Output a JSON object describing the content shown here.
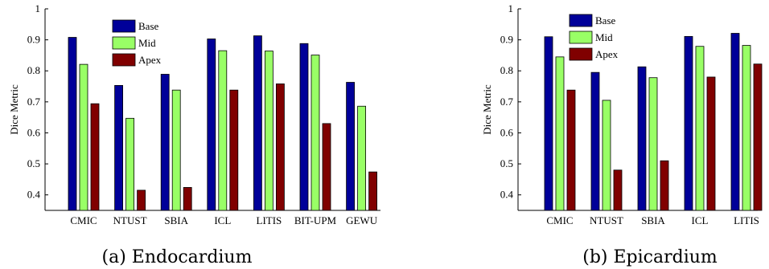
{
  "chart_data": [
    {
      "type": "bar",
      "caption": "(a) Endocardium",
      "ylabel": "Dice Metric",
      "xlabel": "",
      "title": "",
      "ylim": [
        0.35,
        1
      ],
      "yticks": [
        "0.4",
        "0.5",
        "0.6",
        "0.7",
        "0.8",
        "0.9",
        "1"
      ],
      "legend_position": "top-center",
      "categories": [
        "CMIC",
        "NTUST",
        "SBIA",
        "ICL",
        "LITIS",
        "BIT-UPM",
        "GEWU"
      ],
      "series": [
        {
          "name": "Base",
          "color": "#000099",
          "values": [
            0.908,
            0.753,
            0.789,
            0.903,
            0.913,
            0.888,
            0.763
          ]
        },
        {
          "name": "Mid",
          "color": "#99ff66",
          "values": [
            0.821,
            0.647,
            0.738,
            0.865,
            0.864,
            0.851,
            0.686
          ]
        },
        {
          "name": "Apex",
          "color": "#800000",
          "values": [
            0.694,
            0.415,
            0.424,
            0.738,
            0.758,
            0.63,
            0.474
          ]
        }
      ]
    },
    {
      "type": "bar",
      "caption": "(b) Epicardium",
      "ylabel": "Dice Metric",
      "xlabel": "",
      "title": "",
      "ylim": [
        0.35,
        1
      ],
      "yticks": [
        "0.4",
        "0.5",
        "0.6",
        "0.7",
        "0.8",
        "0.9",
        "1"
      ],
      "legend_position": "top-center",
      "categories": [
        "CMIC",
        "NTUST",
        "SBIA",
        "ICL",
        "LITIS"
      ],
      "series": [
        {
          "name": "Base",
          "color": "#000099",
          "values": [
            0.91,
            0.795,
            0.813,
            0.911,
            0.921
          ]
        },
        {
          "name": "Mid",
          "color": "#99ff66",
          "values": [
            0.845,
            0.705,
            0.778,
            0.879,
            0.882
          ]
        },
        {
          "name": "Apex",
          "color": "#800000",
          "values": [
            0.738,
            0.48,
            0.51,
            0.78,
            0.822
          ]
        }
      ]
    }
  ]
}
